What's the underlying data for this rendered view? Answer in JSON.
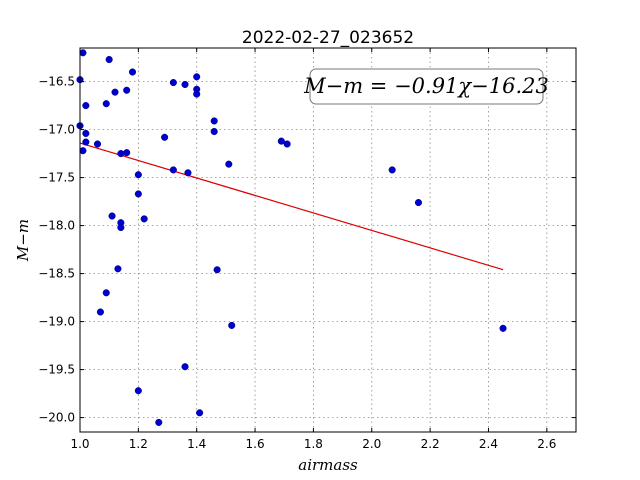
{
  "chart_data": {
    "type": "scatter",
    "title": "2022-02-27_023652",
    "xlabel": "airmass",
    "ylabel": "M−m",
    "xlim": [
      1.0,
      2.7
    ],
    "ylim": [
      -20.15,
      -16.15
    ],
    "y_inverted": true,
    "grid": true,
    "x_ticks": [
      1.0,
      1.2,
      1.4,
      1.6,
      1.8,
      2.0,
      2.2,
      2.4,
      2.6
    ],
    "x_tick_labels": [
      "1.0",
      "1.2",
      "1.4",
      "1.6",
      "1.8",
      "2.0",
      "2.2",
      "2.4",
      "2.6"
    ],
    "y_ticks": [
      -16.5,
      -17.0,
      -17.5,
      -18.0,
      -18.5,
      -19.0,
      -19.5,
      -20.0
    ],
    "y_tick_labels": [
      "−16.5",
      "−17.0",
      "−17.5",
      "−18.0",
      "−18.5",
      "−19.0",
      "−19.5",
      "−20.0"
    ],
    "annotation": "M−m = −0.91χ−16.23",
    "annotation_placement": "top-right",
    "point_color": "#0000cc",
    "line_color": "#dd0000",
    "fit_line": {
      "slope": -0.91,
      "intercept": -16.23,
      "x_range": [
        1.0,
        2.45
      ]
    },
    "points": [
      {
        "x": 1.01,
        "y": -16.2
      },
      {
        "x": 1.0,
        "y": -16.48
      },
      {
        "x": 1.0,
        "y": -16.96
      },
      {
        "x": 1.01,
        "y": -17.22
      },
      {
        "x": 1.02,
        "y": -16.75
      },
      {
        "x": 1.02,
        "y": -17.04
      },
      {
        "x": 1.02,
        "y": -17.13
      },
      {
        "x": 1.06,
        "y": -17.15
      },
      {
        "x": 1.07,
        "y": -18.9
      },
      {
        "x": 1.09,
        "y": -16.73
      },
      {
        "x": 1.09,
        "y": -18.7
      },
      {
        "x": 1.1,
        "y": -16.27
      },
      {
        "x": 1.11,
        "y": -17.9
      },
      {
        "x": 1.12,
        "y": -16.61
      },
      {
        "x": 1.13,
        "y": -18.45
      },
      {
        "x": 1.14,
        "y": -17.25
      },
      {
        "x": 1.14,
        "y": -17.97
      },
      {
        "x": 1.14,
        "y": -18.02
      },
      {
        "x": 1.16,
        "y": -16.59
      },
      {
        "x": 1.16,
        "y": -17.24
      },
      {
        "x": 1.18,
        "y": -16.4
      },
      {
        "x": 1.2,
        "y": -17.47
      },
      {
        "x": 1.2,
        "y": -17.67
      },
      {
        "x": 1.2,
        "y": -19.72
      },
      {
        "x": 1.22,
        "y": -17.93
      },
      {
        "x": 1.27,
        "y": -20.05
      },
      {
        "x": 1.29,
        "y": -17.08
      },
      {
        "x": 1.32,
        "y": -16.51
      },
      {
        "x": 1.32,
        "y": -17.42
      },
      {
        "x": 1.36,
        "y": -16.53
      },
      {
        "x": 1.36,
        "y": -19.47
      },
      {
        "x": 1.37,
        "y": -17.45
      },
      {
        "x": 1.4,
        "y": -16.45
      },
      {
        "x": 1.4,
        "y": -16.58
      },
      {
        "x": 1.4,
        "y": -16.63
      },
      {
        "x": 1.41,
        "y": -19.95
      },
      {
        "x": 1.46,
        "y": -17.02
      },
      {
        "x": 1.46,
        "y": -16.91
      },
      {
        "x": 1.47,
        "y": -18.46
      },
      {
        "x": 1.51,
        "y": -17.36
      },
      {
        "x": 1.52,
        "y": -19.04
      },
      {
        "x": 1.69,
        "y": -17.12
      },
      {
        "x": 1.71,
        "y": -17.15
      },
      {
        "x": 2.07,
        "y": -17.42
      },
      {
        "x": 2.16,
        "y": -17.76
      },
      {
        "x": 2.45,
        "y": -19.07
      }
    ]
  }
}
